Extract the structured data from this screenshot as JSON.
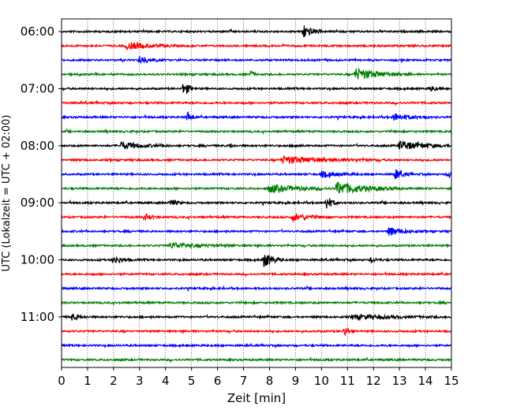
{
  "chart_data": {
    "type": "line",
    "xlabel": "Zeit  [min]",
    "ylabel": "UTC (Lokalzeit = UTC + 02:00)",
    "xlim": [
      0,
      15
    ],
    "x_ticks": [
      "0",
      "1",
      "2",
      "3",
      "4",
      "5",
      "6",
      "7",
      "8",
      "9",
      "10",
      "11",
      "12",
      "13",
      "14",
      "15"
    ],
    "y_tick_labels": [
      "06:00",
      "07:00",
      "08:00",
      "09:00",
      "10:00",
      "11:00"
    ],
    "grid": "vertical dotted",
    "trace_colors": [
      "#000000",
      "#ff0000",
      "#0000ff",
      "#008000"
    ],
    "traces_start": "06:00",
    "trace_interval_min": 15,
    "trace_count": 24,
    "events": [
      {
        "trace": 0,
        "t": 9.3,
        "amp": 1.0,
        "dur": 0.3
      },
      {
        "trace": 1,
        "t": 2.5,
        "amp": 0.5,
        "dur": 0.8
      },
      {
        "trace": 2,
        "t": 3.0,
        "amp": 0.55,
        "dur": 0.4
      },
      {
        "trace": 3,
        "t": 7.3,
        "amp": 0.5,
        "dur": 0.1
      },
      {
        "trace": 3,
        "t": 11.3,
        "amp": 0.8,
        "dur": 0.9
      },
      {
        "trace": 4,
        "t": 4.7,
        "amp": 1.0,
        "dur": 0.2
      },
      {
        "trace": 4,
        "t": 14.2,
        "amp": 0.4,
        "dur": 0.2
      },
      {
        "trace": 6,
        "t": 4.85,
        "amp": 0.7,
        "dur": 0.15
      },
      {
        "trace": 6,
        "t": 12.8,
        "amp": 0.5,
        "dur": 0.6
      },
      {
        "trace": 8,
        "t": 2.3,
        "amp": 0.5,
        "dur": 0.8
      },
      {
        "trace": 8,
        "t": 6.5,
        "amp": 0.3,
        "dur": 0.1
      },
      {
        "trace": 8,
        "t": 9.0,
        "amp": 0.35,
        "dur": 0.1
      },
      {
        "trace": 8,
        "t": 13.0,
        "amp": 0.6,
        "dur": 1.0
      },
      {
        "trace": 9,
        "t": 8.5,
        "amp": 0.5,
        "dur": 1.6
      },
      {
        "trace": 10,
        "t": 10.0,
        "amp": 0.4,
        "dur": 0.6
      },
      {
        "trace": 10,
        "t": 12.85,
        "amp": 0.75,
        "dur": 0.25
      },
      {
        "trace": 10,
        "t": 14.9,
        "amp": 0.6,
        "dur": 0.1
      },
      {
        "trace": 11,
        "t": 8.0,
        "amp": 0.55,
        "dur": 1.0
      },
      {
        "trace": 11,
        "t": 10.6,
        "amp": 0.9,
        "dur": 1.0
      },
      {
        "trace": 12,
        "t": 4.2,
        "amp": 0.5,
        "dur": 0.2
      },
      {
        "trace": 12,
        "t": 10.2,
        "amp": 0.95,
        "dur": 0.2
      },
      {
        "trace": 13,
        "t": 3.2,
        "amp": 0.45,
        "dur": 0.25
      },
      {
        "trace": 13,
        "t": 8.9,
        "amp": 0.5,
        "dur": 0.6
      },
      {
        "trace": 14,
        "t": 12.6,
        "amp": 0.6,
        "dur": 0.5
      },
      {
        "trace": 15,
        "t": 4.2,
        "amp": 0.4,
        "dur": 1.0
      },
      {
        "trace": 16,
        "t": 2.0,
        "amp": 0.6,
        "dur": 0.3
      },
      {
        "trace": 16,
        "t": 7.8,
        "amp": 1.1,
        "dur": 0.3
      },
      {
        "trace": 16,
        "t": 11.9,
        "amp": 0.3,
        "dur": 0.2
      },
      {
        "trace": 20,
        "t": 0.4,
        "amp": 0.45,
        "dur": 0.3
      },
      {
        "trace": 20,
        "t": 11.2,
        "amp": 0.3,
        "dur": 1.5
      },
      {
        "trace": 21,
        "t": 10.9,
        "amp": 0.75,
        "dur": 0.15
      }
    ]
  }
}
